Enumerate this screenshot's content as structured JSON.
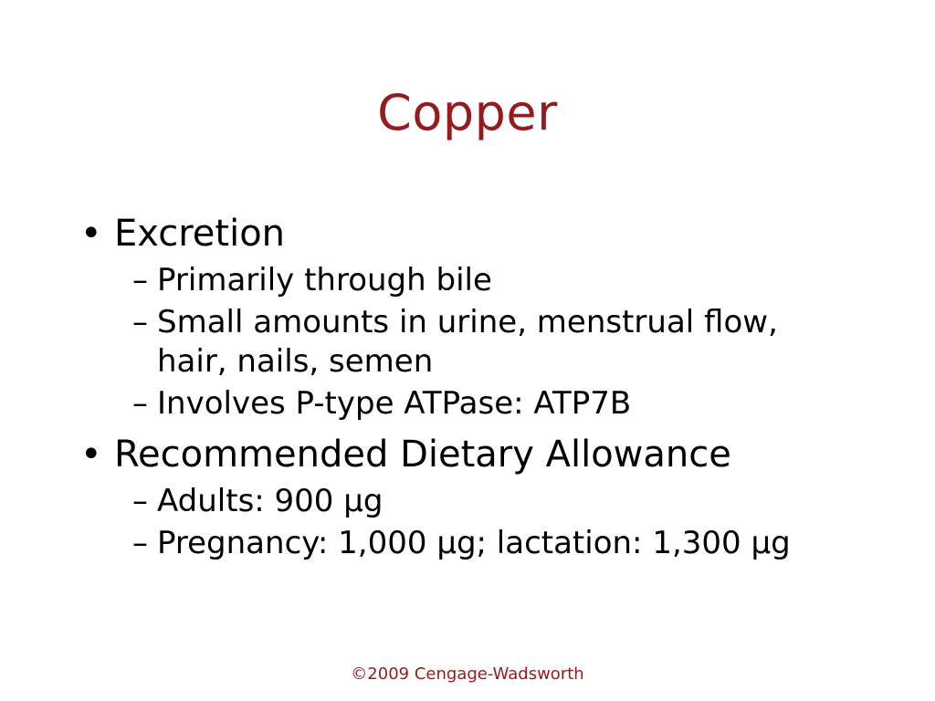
{
  "slide": {
    "title": "Copper",
    "markers": {
      "level1": "•",
      "level2": "–"
    },
    "bullets": [
      {
        "label": "Excretion",
        "sub": [
          "Primarily through bile",
          "Small amounts in urine, menstrual flow, hair, nails, semen",
          "Involves P-type ATPase: ATP7B"
        ]
      },
      {
        "label": "Recommended Dietary Allowance",
        "sub": [
          "Adults: 900 µg",
          "Pregnancy: 1,000 µg; lactation: 1,300 µg"
        ]
      }
    ],
    "footer": "©2009 Cengage-Wadsworth",
    "colors": {
      "accent": "#951b1e",
      "text": "#000000",
      "background": "#ffffff"
    }
  }
}
